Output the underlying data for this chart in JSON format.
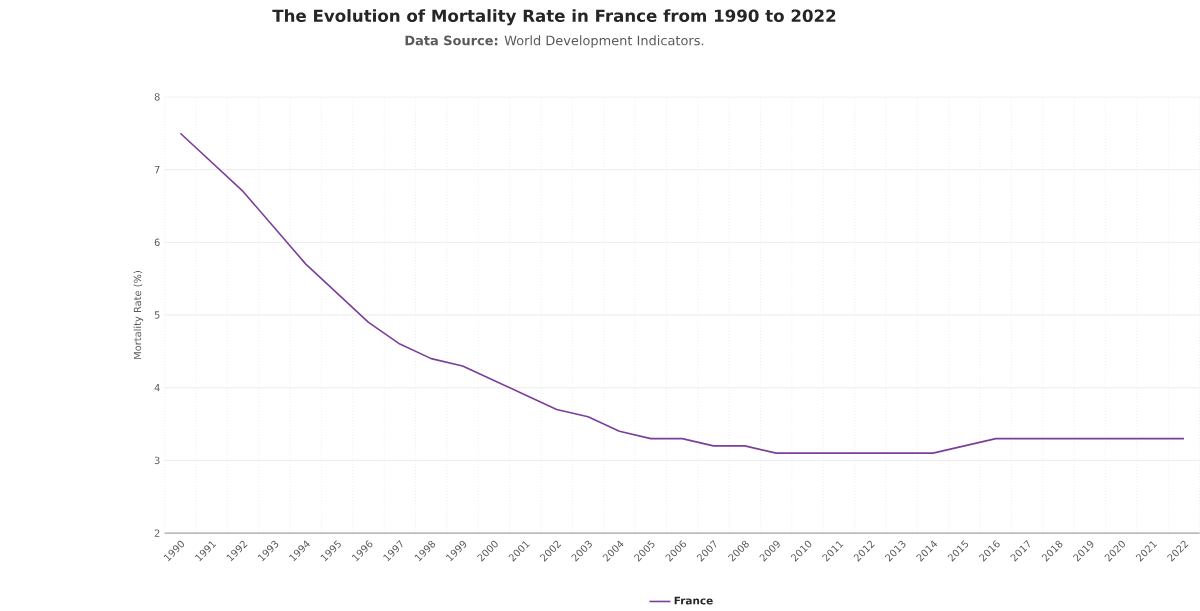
{
  "chart_data": {
    "type": "line",
    "title": "The Evolution of Mortality Rate in France from 1990 to 2022",
    "subtitle": "**Data Source:** World Development Indicators.",
    "ylabel": "Mortality Rate (%)",
    "categories": [
      "1990",
      "1991",
      "1992",
      "1993",
      "1994",
      "1995",
      "1996",
      "1997",
      "1998",
      "1999",
      "2000",
      "2001",
      "2002",
      "2003",
      "2004",
      "2005",
      "2006",
      "2007",
      "2008",
      "2009",
      "2010",
      "2011",
      "2012",
      "2013",
      "2014",
      "2015",
      "2016",
      "2017",
      "2018",
      "2019",
      "2020",
      "2021",
      "2022"
    ],
    "series": [
      {
        "name": "France",
        "color": "#7b3f99",
        "values": [
          7.5,
          7.1,
          6.7,
          6.2,
          5.7,
          5.3,
          4.9,
          4.6,
          4.4,
          4.3,
          4.1,
          3.9,
          3.7,
          3.6,
          3.4,
          3.3,
          3.3,
          3.2,
          3.2,
          3.1,
          3.1,
          3.1,
          3.1,
          3.1,
          3.1,
          3.2,
          3.3,
          3.3,
          3.3,
          3.3,
          3.3,
          3.3,
          3.3
        ]
      }
    ],
    "ylim": [
      2,
      8
    ],
    "yticks": [
      2,
      3,
      4,
      5,
      6,
      7,
      8
    ],
    "grid": true,
    "legend": "bottom",
    "marker": "none",
    "line_style": "solid"
  }
}
